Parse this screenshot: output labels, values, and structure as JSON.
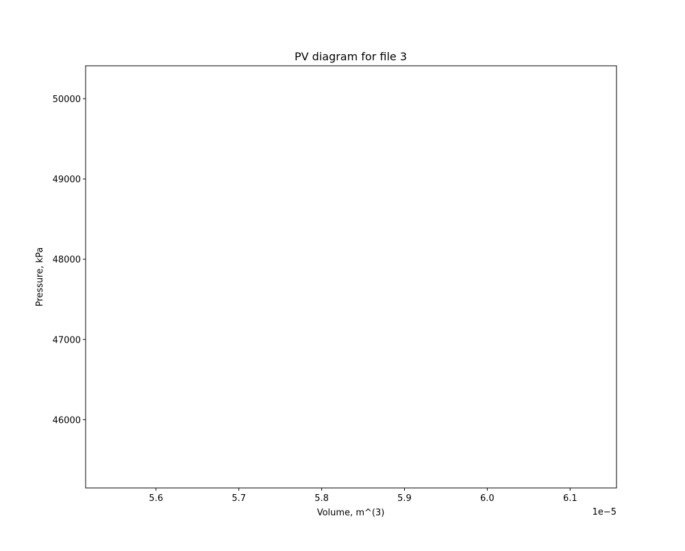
{
  "chart_data": {
    "type": "line",
    "title": "PV diagram for file 3",
    "xlabel": "Volume, m^(3)",
    "ylabel": "Pressure, kPa",
    "x_offset_label": "1e−5",
    "x_ticks": [
      5.6,
      5.7,
      5.8,
      5.9,
      6.0,
      6.1
    ],
    "x_tick_labels": [
      "5.6",
      "5.7",
      "5.8",
      "5.9",
      "6.0",
      "6.1"
    ],
    "y_ticks": [
      46000,
      47000,
      48000,
      49000,
      50000
    ],
    "y_tick_labels": [
      "46000",
      "47000",
      "48000",
      "49000",
      "50000"
    ],
    "xlim": [
      5.515,
      6.156
    ],
    "ylim": [
      45150,
      50410
    ],
    "series": [],
    "grid": false,
    "legend": false
  }
}
